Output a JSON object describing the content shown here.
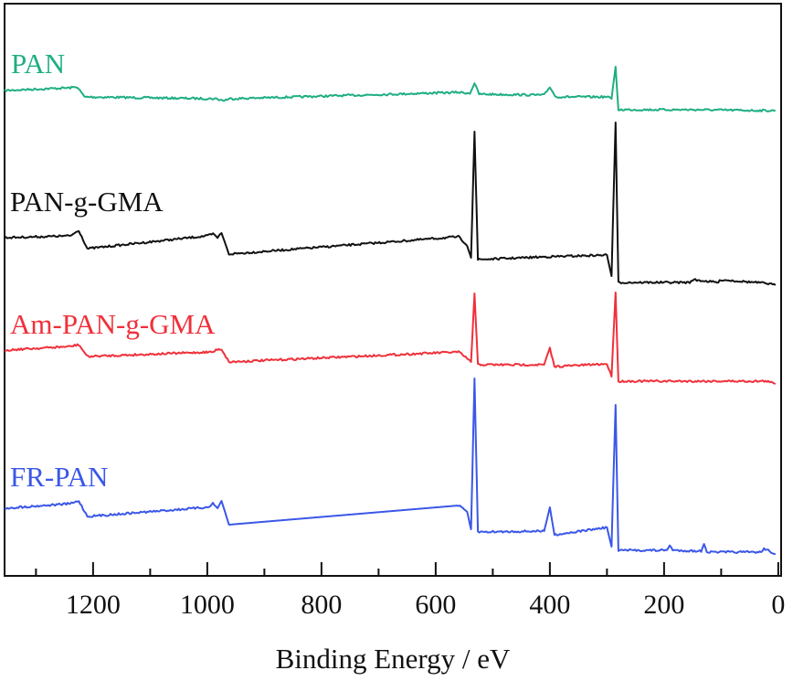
{
  "chart_data": {
    "type": "line",
    "title": "",
    "xlabel": "Binding Energy / eV",
    "ylabel": "",
    "xlim": [
      1355,
      -5
    ],
    "x_reversed": true,
    "y_units": "arbitrary, stacked offsets",
    "xticks": [
      1200,
      1000,
      800,
      600,
      400,
      200,
      0
    ],
    "xtick_labels": [
      "1200",
      "1000",
      "800",
      "600",
      "400",
      "200",
      "0"
    ],
    "minor_xticks": [
      1300,
      1100,
      900,
      700,
      500,
      300,
      100
    ],
    "grid": false,
    "legend": "inline labels at left",
    "series": [
      {
        "name": "PAN",
        "color": "#1fae82",
        "points": [
          [
            1355,
            531
          ],
          [
            1240,
            534
          ],
          [
            1228,
            535
          ],
          [
            1215,
            524
          ],
          [
            985,
            522
          ],
          [
            972,
            520
          ],
          [
            960,
            522
          ],
          [
            560,
            529
          ],
          [
            540,
            528
          ],
          [
            532,
            539
          ],
          [
            524,
            527
          ],
          [
            410,
            526
          ],
          [
            400,
            535
          ],
          [
            390,
            524
          ],
          [
            300,
            524
          ],
          [
            292,
            522
          ],
          [
            285,
            557
          ],
          [
            280,
            510
          ],
          [
            150,
            510
          ],
          [
            20,
            509
          ],
          [
            5,
            509
          ]
        ]
      },
      {
        "name": "PAN-g-GMA",
        "color": "#111111",
        "points": [
          [
            1355,
            370
          ],
          [
            1240,
            372
          ],
          [
            1225,
            378
          ],
          [
            1210,
            358
          ],
          [
            1000,
            372
          ],
          [
            990,
            374
          ],
          [
            982,
            370
          ],
          [
            975,
            375
          ],
          [
            962,
            352
          ],
          [
            560,
            371
          ],
          [
            545,
            362
          ],
          [
            538,
            348
          ],
          [
            532,
            486
          ],
          [
            526,
            346
          ],
          [
            410,
            349
          ],
          [
            300,
            351
          ],
          [
            292,
            328
          ],
          [
            285,
            496
          ],
          [
            280,
            321
          ],
          [
            155,
            321
          ],
          [
            150,
            324
          ],
          [
            105,
            321
          ],
          [
            100,
            324
          ],
          [
            20,
            320
          ],
          [
            5,
            318
          ]
        ]
      },
      {
        "name": "Am-PAN-g-GMA",
        "color": "#f0303a",
        "points": [
          [
            1355,
            247
          ],
          [
            1240,
            251
          ],
          [
            1225,
            253
          ],
          [
            1210,
            240
          ],
          [
            990,
            245
          ],
          [
            982,
            248
          ],
          [
            975,
            248
          ],
          [
            962,
            234
          ],
          [
            560,
            245
          ],
          [
            545,
            238
          ],
          [
            538,
            234
          ],
          [
            532,
            309
          ],
          [
            526,
            231
          ],
          [
            410,
            231
          ],
          [
            400,
            249
          ],
          [
            392,
            229
          ],
          [
            300,
            232
          ],
          [
            292,
            218
          ],
          [
            285,
            310
          ],
          [
            280,
            213
          ],
          [
            20,
            213
          ],
          [
            5,
            210
          ]
        ]
      },
      {
        "name": "FR-PAN",
        "color": "#3b57e8",
        "points": [
          [
            1355,
            74
          ],
          [
            1240,
            79
          ],
          [
            1225,
            82
          ],
          [
            1210,
            65
          ],
          [
            1000,
            75
          ],
          [
            990,
            79
          ],
          [
            982,
            74
          ],
          [
            975,
            82
          ],
          [
            962,
            56
          ],
          [
            560,
            77
          ],
          [
            545,
            70
          ],
          [
            538,
            51
          ],
          [
            532,
            216
          ],
          [
            526,
            48
          ],
          [
            410,
            49
          ],
          [
            400,
            75
          ],
          [
            392,
            45
          ],
          [
            300,
            53
          ],
          [
            292,
            32
          ],
          [
            285,
            187
          ],
          [
            280,
            28
          ],
          [
            195,
            28
          ],
          [
            190,
            34
          ],
          [
            185,
            28
          ],
          [
            135,
            27
          ],
          [
            130,
            36
          ],
          [
            125,
            26
          ],
          [
            30,
            26
          ],
          [
            25,
            30
          ],
          [
            5,
            24
          ]
        ]
      }
    ]
  }
}
